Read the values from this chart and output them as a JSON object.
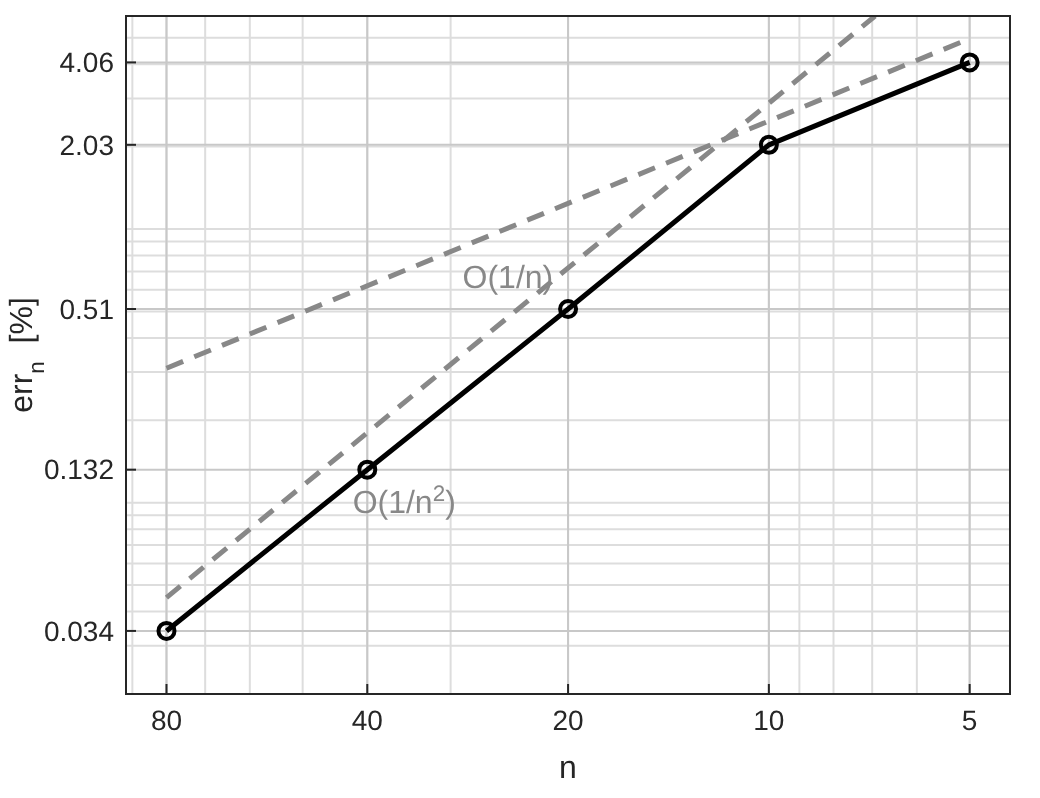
{
  "chart_data": {
    "type": "line",
    "xlabel": "n",
    "ylabel": "err$_{n}$  [%]",
    "log": "xy",
    "grid": true,
    "marker": "circle",
    "xlim": [
      92,
      4.35
    ],
    "xticks": [
      80,
      40,
      20,
      10,
      5
    ],
    "ylim": [
      0.02,
      6
    ],
    "yticks": [
      0.034,
      0.132,
      0.51,
      2.03,
      4.06
    ],
    "series": [
      {
        "x": [
          80,
          5
        ],
        "values": [
          0.31,
          4.96
        ],
        "color": "#888888",
        "line_style": "dashed",
        "marker": "none"
      },
      {
        "x": [
          80,
          6.93
        ],
        "values": [
          0.045,
          6
        ],
        "color": "#888888",
        "line_style": "dashed",
        "marker": "none"
      },
      {
        "x": [
          80,
          40,
          20,
          10,
          5
        ],
        "values": [
          0.034,
          0.132,
          0.51,
          2.03,
          4.06
        ],
        "color": "#000000",
        "line_style": "solid"
      }
    ],
    "annotations": [
      "O(1/n)",
      "O(1/n$^{2}$)"
    ]
  }
}
